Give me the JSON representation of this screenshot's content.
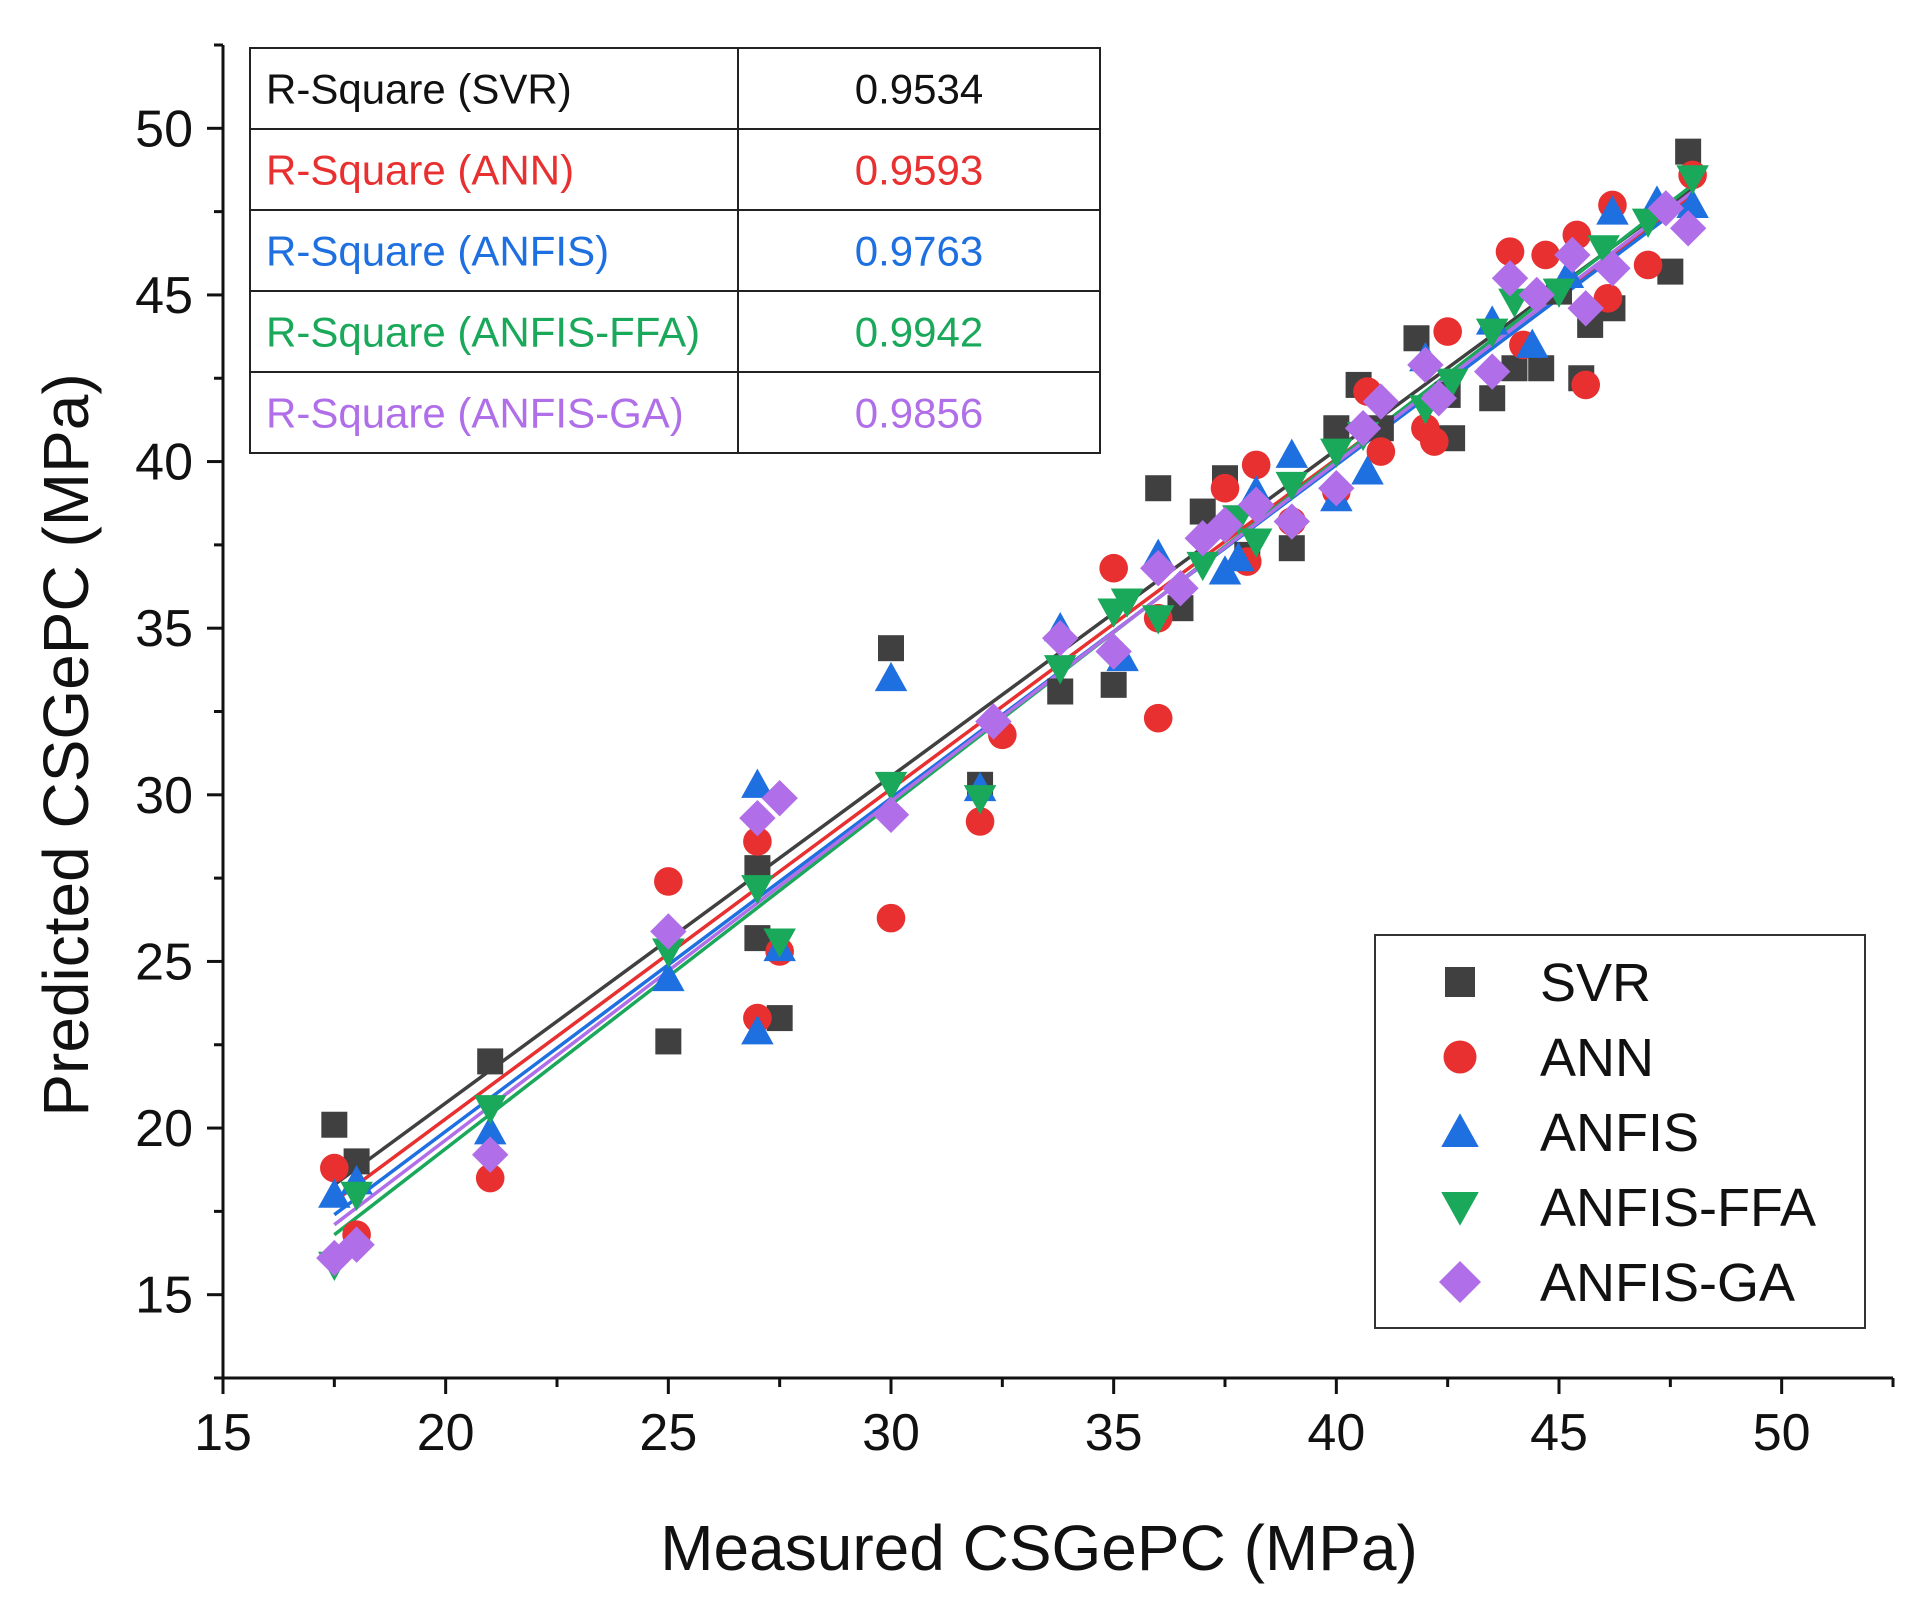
{
  "chart_data": {
    "type": "scatter",
    "title": "",
    "xlabel": "Measured CSGePC (MPa)",
    "ylabel": "Predicted CSGePC (MPa)",
    "xlim": [
      15,
      52.5
    ],
    "ylim": [
      12.5,
      52.5
    ],
    "xticks": [
      15,
      20,
      25,
      30,
      35,
      40,
      45,
      50
    ],
    "yticks": [
      15,
      20,
      25,
      30,
      35,
      40,
      45,
      50
    ],
    "legend_position": "bottom-right",
    "series": [
      {
        "name": "SVR",
        "marker": "square",
        "color": "#404040",
        "r_square_label": "R-Square (SVR)",
        "r_square": "0.9534",
        "fit": [
          [
            17.5,
            18.3
          ],
          [
            48,
            48.2
          ]
        ],
        "points": [
          [
            17.5,
            20.1
          ],
          [
            18,
            19.0
          ],
          [
            21,
            22.0
          ],
          [
            25,
            22.6
          ],
          [
            27,
            25.7
          ],
          [
            27,
            27.8
          ],
          [
            27.5,
            23.3
          ],
          [
            30,
            34.4
          ],
          [
            32,
            30.3
          ],
          [
            33.8,
            33.1
          ],
          [
            35,
            33.3
          ],
          [
            36,
            39.2
          ],
          [
            36.5,
            35.6
          ],
          [
            37,
            38.5
          ],
          [
            37.5,
            39.5
          ],
          [
            38,
            37.2
          ],
          [
            39,
            37.4
          ],
          [
            40,
            41.0
          ],
          [
            40.5,
            42.3
          ],
          [
            41,
            41.0
          ],
          [
            41.8,
            43.7
          ],
          [
            42.5,
            42.0
          ],
          [
            42.6,
            40.7
          ],
          [
            43.5,
            41.9
          ],
          [
            44,
            42.8
          ],
          [
            44.6,
            42.8
          ],
          [
            45,
            45.1
          ],
          [
            45.5,
            42.5
          ],
          [
            45.7,
            44.1
          ],
          [
            46.2,
            44.6
          ],
          [
            47.5,
            45.7
          ],
          [
            47.9,
            49.3
          ]
        ]
      },
      {
        "name": "ANN",
        "marker": "circle",
        "color": "#e83030",
        "r_square_label": "R-Square (ANN)",
        "r_square": "0.9593",
        "fit": [
          [
            17.5,
            17.8
          ],
          [
            48,
            48.0
          ]
        ],
        "points": [
          [
            17.5,
            18.8
          ],
          [
            18,
            16.8
          ],
          [
            21,
            18.5
          ],
          [
            25,
            27.4
          ],
          [
            27,
            23.3
          ],
          [
            27,
            28.6
          ],
          [
            27.5,
            25.3
          ],
          [
            30,
            26.3
          ],
          [
            32,
            29.2
          ],
          [
            32.5,
            31.8
          ],
          [
            35,
            36.8
          ],
          [
            36,
            32.3
          ],
          [
            36,
            35.3
          ],
          [
            37.5,
            39.2
          ],
          [
            38,
            37.0
          ],
          [
            38.2,
            39.9
          ],
          [
            39,
            38.2
          ],
          [
            40,
            39.1
          ],
          [
            40.7,
            42.1
          ],
          [
            41,
            40.3
          ],
          [
            42,
            41.0
          ],
          [
            42.2,
            40.6
          ],
          [
            42.5,
            43.9
          ],
          [
            43.9,
            46.3
          ],
          [
            44.2,
            43.5
          ],
          [
            44.7,
            46.2
          ],
          [
            45.4,
            46.8
          ],
          [
            45.6,
            42.3
          ],
          [
            46.1,
            44.9
          ],
          [
            46.2,
            47.7
          ],
          [
            47,
            45.9
          ],
          [
            48,
            48.6
          ]
        ]
      },
      {
        "name": "ANFIS",
        "marker": "triangle-up",
        "color": "#1e6fe0",
        "r_square_label": "R-Square (ANFIS)",
        "r_square": "0.9763",
        "fit": [
          [
            17.5,
            17.4
          ],
          [
            48,
            47.9
          ]
        ],
        "points": [
          [
            17.5,
            18.0
          ],
          [
            18,
            18.4
          ],
          [
            21,
            19.9
          ],
          [
            25,
            24.5
          ],
          [
            27,
            22.9
          ],
          [
            27,
            30.3
          ],
          [
            27.5,
            25.4
          ],
          [
            30,
            33.5
          ],
          [
            32,
            30.2
          ],
          [
            33.8,
            35.0
          ],
          [
            35.2,
            34.1
          ],
          [
            36,
            37.2
          ],
          [
            37.5,
            36.7
          ],
          [
            37.8,
            37.1
          ],
          [
            38.2,
            39.1
          ],
          [
            39,
            40.2
          ],
          [
            40,
            38.9
          ],
          [
            40.7,
            39.7
          ],
          [
            42,
            43.1
          ],
          [
            43.5,
            44.2
          ],
          [
            44.4,
            43.5
          ],
          [
            45.2,
            45.6
          ],
          [
            46.2,
            47.5
          ],
          [
            47.2,
            47.8
          ],
          [
            48,
            47.7
          ]
        ]
      },
      {
        "name": "ANFIS-FFA",
        "marker": "triangle-down",
        "color": "#1aa85a",
        "r_square_label": "R-Square (ANFIS-FFA)",
        "r_square": "0.9942",
        "fit": [
          [
            17.5,
            16.8
          ],
          [
            48,
            48.3
          ]
        ],
        "points": [
          [
            17.5,
            15.9
          ],
          [
            18,
            18.0
          ],
          [
            21,
            20.6
          ],
          [
            25,
            25.3
          ],
          [
            27,
            27.2
          ],
          [
            27.5,
            25.6
          ],
          [
            30,
            30.3
          ],
          [
            32,
            29.9
          ],
          [
            33.8,
            33.8
          ],
          [
            35,
            35.5
          ],
          [
            35.3,
            35.8
          ],
          [
            36,
            35.3
          ],
          [
            37,
            36.9
          ],
          [
            37.8,
            38.3
          ],
          [
            38.2,
            37.6
          ],
          [
            39,
            39.3
          ],
          [
            40,
            40.3
          ],
          [
            40.6,
            40.8
          ],
          [
            42,
            41.6
          ],
          [
            42.6,
            42.4
          ],
          [
            43.5,
            43.9
          ],
          [
            44,
            44.8
          ],
          [
            45,
            45.1
          ],
          [
            46,
            46.4
          ],
          [
            47,
            47.2
          ],
          [
            48,
            48.5
          ]
        ]
      },
      {
        "name": "ANFIS-GA",
        "marker": "diamond",
        "color": "#b06fe8",
        "r_square_label": "R-Square (ANFIS-GA)",
        "r_square": "0.9856",
        "fit": [
          [
            17.5,
            17.1
          ],
          [
            48,
            48.1
          ]
        ],
        "points": [
          [
            17.5,
            16.1
          ],
          [
            18,
            16.5
          ],
          [
            21,
            19.2
          ],
          [
            25,
            25.9
          ],
          [
            27,
            29.3
          ],
          [
            27.5,
            29.9
          ],
          [
            30,
            29.4
          ],
          [
            32.3,
            32.2
          ],
          [
            33.8,
            34.7
          ],
          [
            35,
            34.3
          ],
          [
            36,
            36.8
          ],
          [
            36.5,
            36.2
          ],
          [
            37,
            37.7
          ],
          [
            37.5,
            38.1
          ],
          [
            38.2,
            38.7
          ],
          [
            39,
            38.2
          ],
          [
            40,
            39.2
          ],
          [
            40.6,
            41.0
          ],
          [
            41,
            41.8
          ],
          [
            42,
            42.9
          ],
          [
            42.3,
            41.9
          ],
          [
            43.5,
            42.7
          ],
          [
            43.9,
            45.5
          ],
          [
            44.5,
            45.0
          ],
          [
            45.3,
            46.2
          ],
          [
            45.6,
            44.6
          ],
          [
            46.2,
            45.8
          ],
          [
            47.4,
            47.6
          ],
          [
            47.9,
            47.0
          ]
        ]
      }
    ]
  }
}
